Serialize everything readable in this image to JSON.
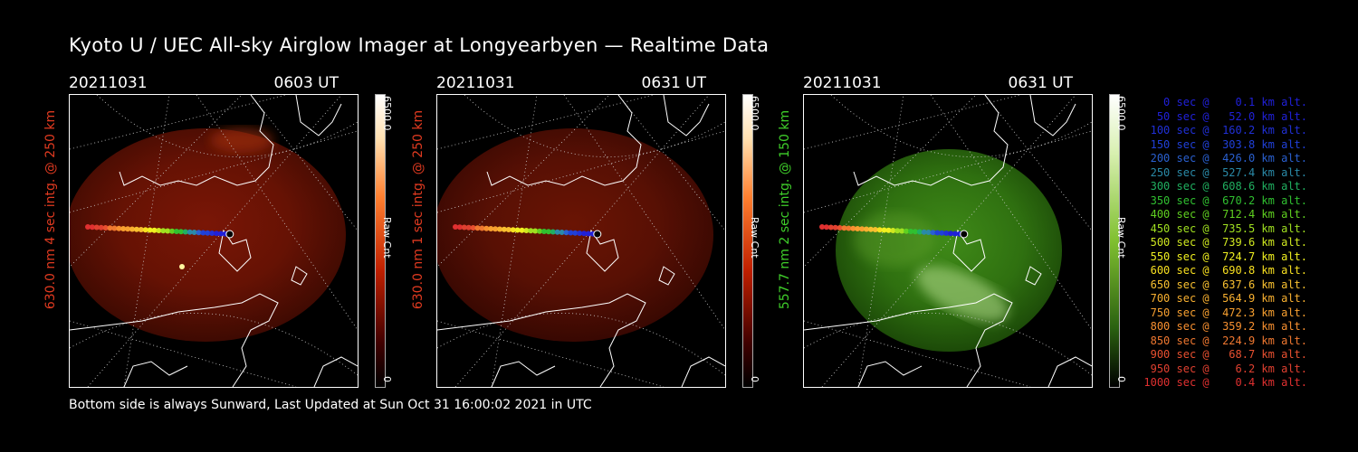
{
  "title": "Kyoto U / UEC All-sky Airglow Imager at Longyearbyen — Realtime Data",
  "footer": "Bottom side is always Sunward, Last Updated at Sun Oct 31 16:00:02 2021 in UTC",
  "panels": [
    {
      "date": "20211031",
      "time": "0603 UT",
      "label": "630.0 nm 4 sec intg. @ 250 km",
      "label_color": "#e03a20",
      "scale_max": "6500.0",
      "scale_min": "0",
      "scale_unit": "Raw Cnt",
      "theme": "red"
    },
    {
      "date": "20211031",
      "time": "0631 UT",
      "label": "630.0 nm 1 sec intg. @ 250 km",
      "label_color": "#e03a20",
      "scale_max": "6500.0",
      "scale_min": "0",
      "scale_unit": "Raw Cnt",
      "theme": "red"
    },
    {
      "date": "20211031",
      "time": "0631 UT",
      "label": "557.7 nm 2 sec intg. @ 150 km",
      "label_color": "#3fcf2a",
      "scale_max": "6500.0",
      "scale_min": "0",
      "scale_unit": "Raw Cnt",
      "theme": "green"
    }
  ],
  "legend": [
    {
      "text": "   0 sec @    0.1 km alt.",
      "color": "#2020d8"
    },
    {
      "text": "  50 sec @   52.0 km alt.",
      "color": "#2020d8"
    },
    {
      "text": " 100 sec @  160.2 km alt.",
      "color": "#2030d8"
    },
    {
      "text": " 150 sec @  303.8 km alt.",
      "color": "#2040d8"
    },
    {
      "text": " 200 sec @  426.0 km alt.",
      "color": "#2a60d0"
    },
    {
      "text": " 250 sec @  527.4 km alt.",
      "color": "#2a8aa8"
    },
    {
      "text": " 300 sec @  608.6 km alt.",
      "color": "#20b060"
    },
    {
      "text": " 350 sec @  670.2 km alt.",
      "color": "#30c030"
    },
    {
      "text": " 400 sec @  712.4 km alt.",
      "color": "#60d020"
    },
    {
      "text": " 450 sec @  735.5 km alt.",
      "color": "#a0e020"
    },
    {
      "text": " 500 sec @  739.6 km alt.",
      "color": "#d0e820"
    },
    {
      "text": " 550 sec @  724.7 km alt.",
      "color": "#f0f020"
    },
    {
      "text": " 600 sec @  690.8 km alt.",
      "color": "#f8e020"
    },
    {
      "text": " 650 sec @  637.6 km alt.",
      "color": "#f8c030"
    },
    {
      "text": " 700 sec @  564.9 km alt.",
      "color": "#f8b030"
    },
    {
      "text": " 750 sec @  472.3 km alt.",
      "color": "#f8a030"
    },
    {
      "text": " 800 sec @  359.2 km alt.",
      "color": "#f89030"
    },
    {
      "text": " 850 sec @  224.9 km alt.",
      "color": "#f07830"
    },
    {
      "text": " 900 sec @   68.7 km alt.",
      "color": "#e85030"
    },
    {
      "text": " 950 sec @    6.2 km alt.",
      "color": "#e04030"
    },
    {
      "text": "1000 sec @    0.4 km alt.",
      "color": "#e03030"
    }
  ]
}
